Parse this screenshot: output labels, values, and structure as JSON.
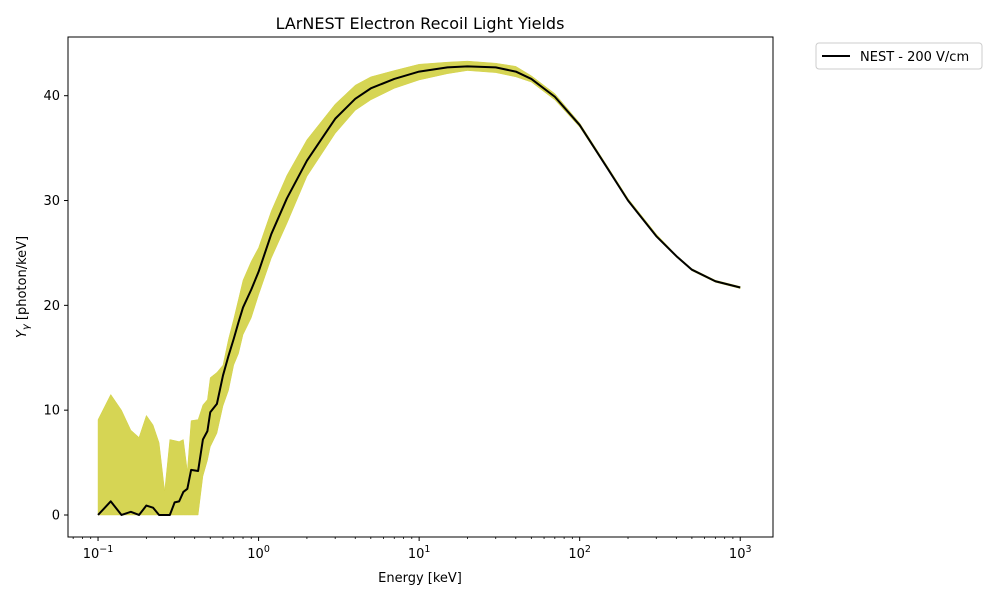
{
  "chart_data": {
    "type": "line",
    "title": "LArNEST Electron Recoil Light Yields",
    "xlabel": "Energy [keV]",
    "ylabel_var": "Y",
    "ylabel_sub": "γ",
    "ylabel_units": " [photon/keV]",
    "xscale": "log",
    "xlim": [
      0.065,
      1600
    ],
    "ylim": [
      -2.1,
      45.6
    ],
    "xticks": [
      {
        "value": 0.1,
        "base": "10",
        "exp": "−1"
      },
      {
        "value": 1,
        "base": "10",
        "exp": "0"
      },
      {
        "value": 10,
        "base": "10",
        "exp": "1"
      },
      {
        "value": 100,
        "base": "10",
        "exp": "2"
      },
      {
        "value": 1000,
        "base": "10",
        "exp": "3"
      }
    ],
    "yticks": [
      "0",
      "10",
      "20",
      "30",
      "40"
    ],
    "grid": false,
    "legend_position": "outside-top-right",
    "series": [
      {
        "name": "NEST - 200 V/cm",
        "line_color": "#000000",
        "band_color": "#d4d34b",
        "x": [
          0.1,
          0.12,
          0.14,
          0.16,
          0.18,
          0.2,
          0.22,
          0.24,
          0.26,
          0.28,
          0.3,
          0.32,
          0.34,
          0.36,
          0.38,
          0.42,
          0.45,
          0.48,
          0.5,
          0.55,
          0.6,
          0.65,
          0.7,
          0.75,
          0.8,
          0.9,
          1.0,
          1.2,
          1.5,
          2,
          3,
          4,
          5,
          7,
          10,
          15,
          20,
          30,
          40,
          50,
          70,
          100,
          150,
          200,
          300,
          400,
          500,
          700,
          1000
        ],
        "y": [
          0,
          1.3,
          0,
          0.3,
          0,
          0.9,
          0.7,
          0,
          0,
          0,
          1.2,
          1.3,
          2.2,
          2.5,
          4.3,
          4.2,
          7.2,
          8.0,
          9.8,
          10.6,
          13.3,
          15.2,
          16.8,
          18.4,
          19.8,
          21.5,
          23.2,
          26.8,
          30.2,
          33.8,
          37.8,
          39.7,
          40.7,
          41.6,
          42.3,
          42.7,
          42.8,
          42.7,
          42.3,
          41.6,
          39.9,
          37.2,
          33.0,
          30.0,
          26.6,
          24.7,
          23.4,
          22.3,
          21.7
        ],
        "band_lower": [
          0,
          0,
          0,
          0,
          0,
          0,
          0,
          0,
          0,
          0,
          0,
          0,
          0,
          0,
          0,
          0,
          3.7,
          5.2,
          6.5,
          7.8,
          10.4,
          11.9,
          14.3,
          15.4,
          17.2,
          18.8,
          21.0,
          24.5,
          27.8,
          32.3,
          36.4,
          38.6,
          39.6,
          40.7,
          41.5,
          42.1,
          42.4,
          42.2,
          41.8,
          41.3,
          39.6,
          37.0,
          32.9,
          29.9,
          26.5,
          24.6,
          23.3,
          22.2,
          21.6
        ],
        "band_upper": [
          9.1,
          11.5,
          10.0,
          8.1,
          7.4,
          9.5,
          8.6,
          6.9,
          2.3,
          7.2,
          7.1,
          7.0,
          7.2,
          4.2,
          9.0,
          9.1,
          10.5,
          11.0,
          13.1,
          13.6,
          14.3,
          16.8,
          18.7,
          20.6,
          22.4,
          24.2,
          25.5,
          29.0,
          32.4,
          35.8,
          39.2,
          41.0,
          41.8,
          42.4,
          43.0,
          43.2,
          43.3,
          43.1,
          42.8,
          41.9,
          40.2,
          37.4,
          33.2,
          30.2,
          26.8,
          24.8,
          23.5,
          22.4,
          21.8
        ]
      }
    ]
  }
}
